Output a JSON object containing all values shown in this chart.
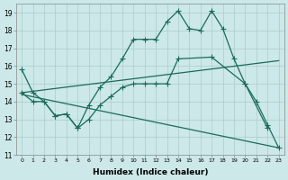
{
  "xlabel": "Humidex (Indice chaleur)",
  "xlim": [
    -0.5,
    23.5
  ],
  "ylim": [
    11,
    19.5
  ],
  "yticks": [
    11,
    12,
    13,
    14,
    15,
    16,
    17,
    18,
    19
  ],
  "xticks": [
    0,
    1,
    2,
    3,
    4,
    5,
    6,
    7,
    8,
    9,
    10,
    11,
    12,
    13,
    14,
    15,
    16,
    17,
    18,
    19,
    20,
    21,
    22,
    23
  ],
  "bg_color": "#cce8e8",
  "grid_color": "#aacccc",
  "line_color": "#1a6b5a",
  "line1_x": [
    0,
    1,
    2,
    3,
    4,
    5,
    6,
    7,
    8,
    9,
    10,
    11,
    12,
    13,
    14,
    15,
    16,
    17,
    18,
    19,
    20,
    21,
    22,
    23
  ],
  "line1_y": [
    15.8,
    14.5,
    14.0,
    13.2,
    13.3,
    12.5,
    13.8,
    14.8,
    15.4,
    16.4,
    17.5,
    17.5,
    17.5,
    18.5,
    19.1,
    18.1,
    18.0,
    19.1,
    18.1,
    16.4,
    15.0,
    14.0,
    12.7,
    11.4
  ],
  "line2_x": [
    0,
    1,
    2,
    3,
    4,
    5,
    6,
    7,
    8,
    9,
    10,
    11,
    12,
    13,
    14,
    17,
    20,
    22
  ],
  "line2_y": [
    14.5,
    14.0,
    14.0,
    13.2,
    13.3,
    12.5,
    13.0,
    13.8,
    14.3,
    14.8,
    15.0,
    15.0,
    15.0,
    15.0,
    16.4,
    16.5,
    15.0,
    12.5
  ],
  "line3_x": [
    0,
    23
  ],
  "line3_y": [
    14.5,
    16.3
  ],
  "line4_x": [
    0,
    23
  ],
  "line4_y": [
    14.4,
    11.4
  ]
}
